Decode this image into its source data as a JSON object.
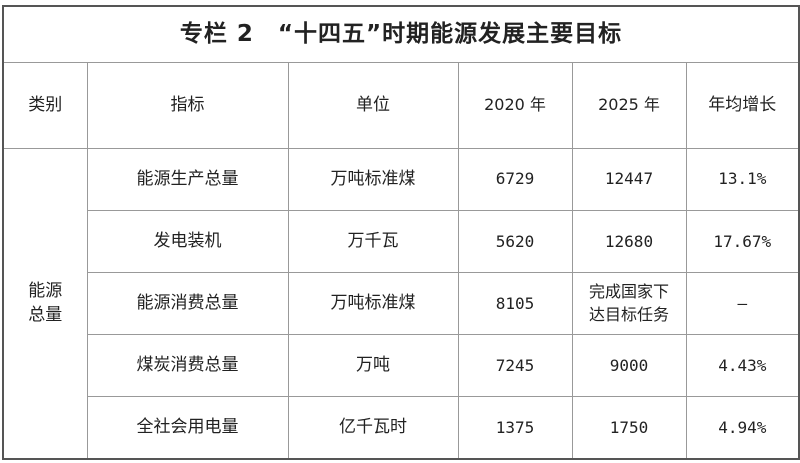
{
  "title": "专栏 2　“十四五”时期能源发展主要目标",
  "headers": [
    "类别",
    "指标",
    "单位",
    "2020 年",
    "2025 年",
    "年均增长"
  ],
  "category": "能源\n总量",
  "rows": [
    {
      "indicator": "能源生产总量",
      "unit": "万吨标准煤",
      "y2020": "6729",
      "y2025": "12447",
      "growth": "13.1%"
    },
    {
      "indicator": "发电装机",
      "unit": "万千瓦",
      "y2020": "5620",
      "y2025": "12680",
      "growth": "17.67%"
    },
    {
      "indicator": "能源消费总量",
      "unit": "万吨标准煤",
      "y2020": "8105",
      "y2025": "完成国家下\n达目标任务",
      "growth": "—"
    },
    {
      "indicator": "煤炭消费总量",
      "unit": "万吨",
      "y2020": "7245",
      "y2025": "9000",
      "growth": "4.43%"
    },
    {
      "indicator": "全社会用电量",
      "unit": "亿千瓦时",
      "y2020": "1375",
      "y2025": "1750",
      "growth": "4.94%"
    }
  ]
}
